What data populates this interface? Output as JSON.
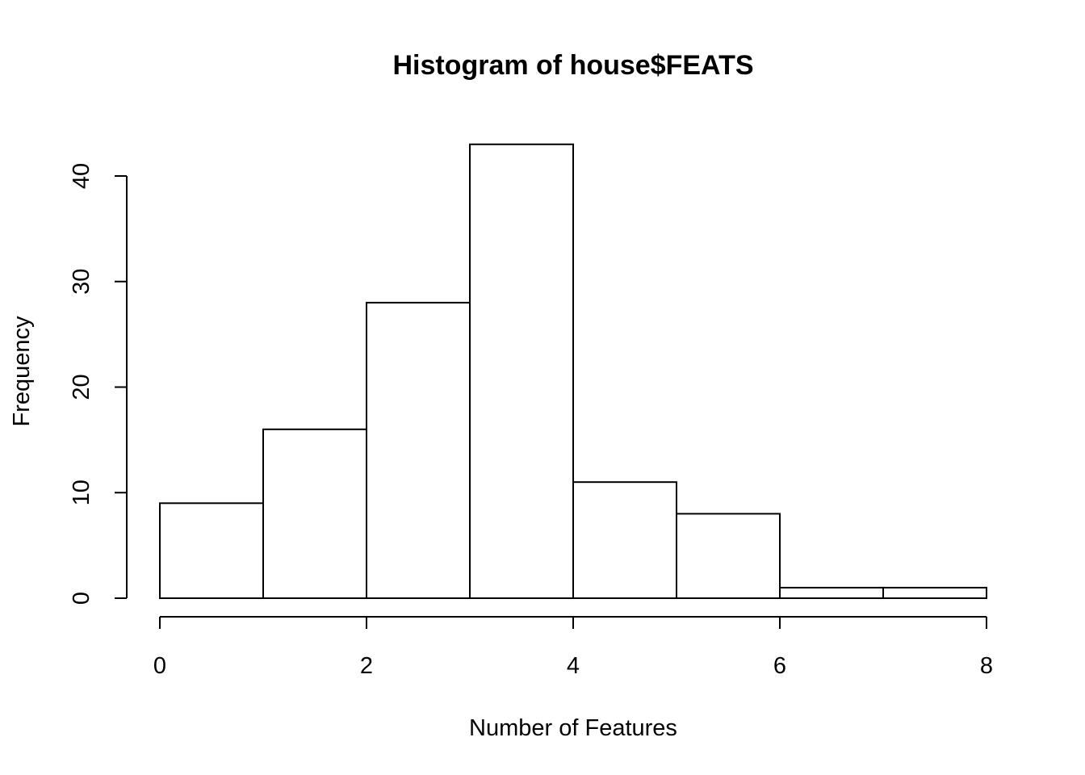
{
  "chart_data": {
    "type": "bar",
    "title": "Histogram of house$FEATS",
    "xlabel": "Number of Features",
    "ylabel": "Frequency",
    "bins": [
      {
        "x0": 0,
        "x1": 1,
        "count": 9
      },
      {
        "x0": 1,
        "x1": 2,
        "count": 16
      },
      {
        "x0": 2,
        "x1": 3,
        "count": 28
      },
      {
        "x0": 3,
        "x1": 4,
        "count": 43
      },
      {
        "x0": 4,
        "x1": 5,
        "count": 11
      },
      {
        "x0": 5,
        "x1": 6,
        "count": 8
      },
      {
        "x0": 6,
        "x1": 7,
        "count": 1
      },
      {
        "x0": 7,
        "x1": 8,
        "count": 1
      }
    ],
    "xlim": [
      0,
      8
    ],
    "ylim": [
      0,
      40
    ],
    "x_ticks": [
      "0",
      "2",
      "4",
      "6",
      "8"
    ],
    "y_ticks": [
      "0",
      "10",
      "20",
      "30",
      "40"
    ],
    "grid": false,
    "legend": "none",
    "bar_fill": "#ffffff",
    "bar_stroke": "#000000"
  }
}
